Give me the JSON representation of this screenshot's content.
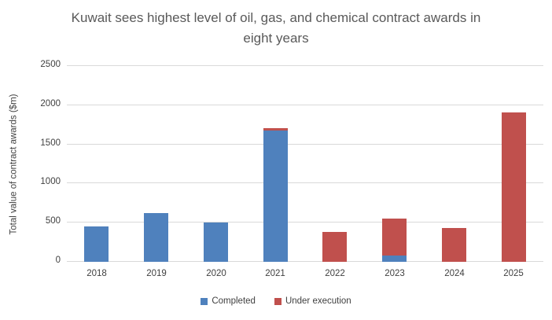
{
  "chart_data": {
    "type": "bar",
    "stacked": true,
    "title": "Kuwait sees highest level of oil, gas, and chemical contract awards in eight years",
    "xlabel": "",
    "ylabel": "Total value of contract awards ($m)",
    "categories": [
      "2018",
      "2019",
      "2020",
      "2021",
      "2022",
      "2023",
      "2024",
      "2025"
    ],
    "series": [
      {
        "name": "Completed",
        "color": "#4F81BD",
        "values": [
          450,
          620,
          500,
          1680,
          0,
          80,
          0,
          0
        ]
      },
      {
        "name": "Under execution",
        "color": "#C0504D",
        "values": [
          0,
          0,
          0,
          30,
          380,
          475,
          430,
          1910
        ]
      }
    ],
    "ylim": [
      0,
      2500
    ],
    "yticks": [
      0,
      500,
      1000,
      1500,
      2000,
      2500
    ],
    "grid": true,
    "legend_position": "bottom",
    "colors": {
      "gridline": "#D9D9D9",
      "title_text": "#595959",
      "axis_text": "#404040",
      "background": "#FFFFFF"
    }
  }
}
